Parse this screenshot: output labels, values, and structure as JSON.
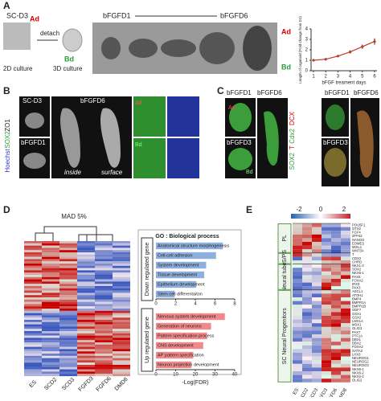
{
  "panels": {
    "a": {
      "letter": "A",
      "sc": "SC-D3",
      "detach": "detach",
      "culture2d": "2D culture",
      "culture3d": "3D culture",
      "start": "bFGFD1",
      "end": "bFGFD6",
      "ad": "Ad",
      "bd": "Bd"
    },
    "b": {
      "letter": "B",
      "hoechst": "Hoechst",
      "sox2": "SOX2",
      "zo1": "ZO1",
      "sc": "SC-D3",
      "d6": "bFGFD6",
      "d1": "bFGFD1",
      "inside": "inside",
      "surface": "surface",
      "ad": "Ad",
      "bd": "Bd"
    },
    "c": {
      "letter": "C",
      "d1": "bFGFD1",
      "d6": "bFGFD6",
      "d3": "bFGFD3",
      "sox2": "SOX2",
      "t": "T",
      "cdx2": "Cdx2",
      "dcx": "DCX",
      "d1b": "bFGFD1",
      "d6b": "bFGFD6",
      "d3b": "bFGFD3",
      "ad": "Ad",
      "bd": "Bd"
    },
    "d": {
      "letter": "D",
      "mad": "MAD 5%",
      "columns": [
        "ES",
        "SCD2",
        "SCD3",
        "FGFD3",
        "FGFD6",
        "DMD8"
      ],
      "down": "Down regulated gene",
      "up": "Up regulated gene"
    },
    "e": {
      "letter": "E",
      "scale": [
        "-2",
        "0",
        "2"
      ],
      "groups": [
        "PL",
        "GS/PS",
        "Neural tube",
        "SC Neural Progenitors"
      ],
      "columns": [
        "ES",
        "SCD2",
        "SCD3",
        "FGFD3",
        "FGFD6",
        "DMD8"
      ],
      "genes": [
        "POU5F1",
        "OTX2",
        "FGF4",
        "ZFP42",
        "NANOG",
        "EOMES",
        "MIXL1",
        "WNT3A",
        "T",
        "CDX2",
        "CHRD",
        "NKX1-2",
        "SOX2",
        "NKX6-1",
        "PAX6",
        "FOXA2",
        "IRX3",
        "PAX3",
        "ASCL1",
        "ATOH1",
        "BMP4",
        "BMPR1A",
        "BMPR1B",
        "GDF7",
        "GSX1",
        "GSX2",
        "LMX1A",
        "MSX1",
        "OLIG3",
        "PAX7",
        "PTF1A",
        "DBX1",
        "DBX2",
        "FOXA2",
        "GATA2",
        "LHX3",
        "NEUROG1",
        "NEUROG2",
        "NEUROG3",
        "NKX6-1",
        "NKX6-2",
        "NKX2-2",
        "OLIG2"
      ]
    }
  },
  "chart_data": [
    {
      "type": "line",
      "xlabel": "bFGF treament days",
      "ylabel": "Length of organoid (Fold change from D1)",
      "x": [
        1,
        2,
        3,
        4,
        5,
        6
      ],
      "values": [
        1,
        1.1,
        1.4,
        1.8,
        2.3,
        2.8
      ],
      "errors": [
        0.05,
        0.08,
        0.1,
        0.15,
        0.2,
        0.3
      ],
      "color": "#c0392b",
      "xlim": [
        1,
        6
      ],
      "xticks": [
        1,
        2,
        3,
        4,
        5,
        6
      ],
      "ylim": [
        0,
        4
      ],
      "yticks": [
        0,
        1,
        2,
        3,
        4
      ]
    },
    {
      "type": "bar",
      "title": "GO : Biological process",
      "categories": [
        "Anatomical structure morphogenesis",
        "Cell-cell adhesion",
        "System development",
        "Tissue development",
        "Epithelium development",
        "Stem cell differentaiton"
      ],
      "values": [
        6.8,
        6.1,
        5.1,
        4.9,
        4.1,
        1.9
      ],
      "color": "#8eaedb",
      "xlim": [
        0,
        8
      ],
      "xticks": [
        0,
        2,
        4,
        6,
        8
      ]
    },
    {
      "type": "bar",
      "xlabel": "-Log(FDR)",
      "categories": [
        "Nervous system development",
        "Generation of neurons",
        "Pattern specification process",
        "CNS development",
        "AP pattern specification",
        "Neuron projection development"
      ],
      "values": [
        35,
        28,
        26,
        24,
        19,
        18
      ],
      "color": "#f08a8a",
      "xlim": [
        0,
        40
      ],
      "xticks": [
        0,
        10,
        20,
        30,
        40
      ]
    }
  ]
}
